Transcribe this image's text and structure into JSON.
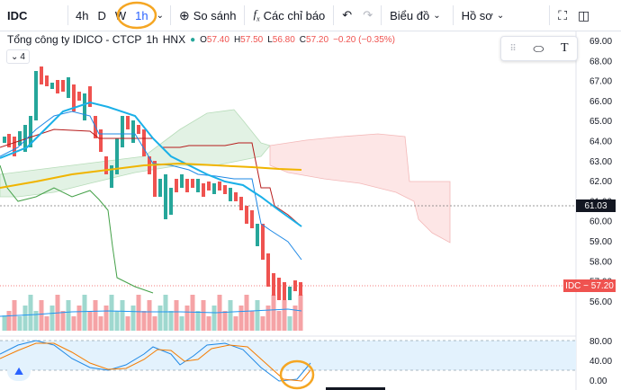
{
  "toolbar": {
    "symbol": "IDC",
    "intervals": [
      "4h",
      "D",
      "W",
      "1h"
    ],
    "compare_label": "So sánh",
    "indicators_label": "Các chỉ báo",
    "chart_type_label": "Biểu đồ",
    "profile_label": "Hồ sơ"
  },
  "legend": {
    "title": "Tổng công ty IDICO - CTCP",
    "interval": "1h",
    "exchange": "HNX",
    "o_label": "O",
    "o": "57.40",
    "h_label": "H",
    "h": "57.50",
    "l_label": "L",
    "l": "56.80",
    "c_label": "C",
    "c": "57.20",
    "change": "−0.20 (−0.35%)",
    "indicator_toggle": "4"
  },
  "price_axis": {
    "ticks": [
      "69.00",
      "68.00",
      "67.00",
      "66.00",
      "65.00",
      "64.00",
      "63.00",
      "62.00",
      "61.00",
      "60.00",
      "59.00",
      "58.00",
      "57.00",
      "56.00"
    ],
    "tag_61": "61.03",
    "tag_last": "IDC − 57.20"
  },
  "osc_axis": {
    "ticks": [
      "80.00",
      "40.00",
      "0.00"
    ]
  },
  "colors": {
    "up": "#26a69a",
    "down": "#ef5350",
    "accent": "#2962ff",
    "kumo": "#fbe3e3",
    "ma": "#f0b400",
    "fast": "#00a4e4"
  }
}
